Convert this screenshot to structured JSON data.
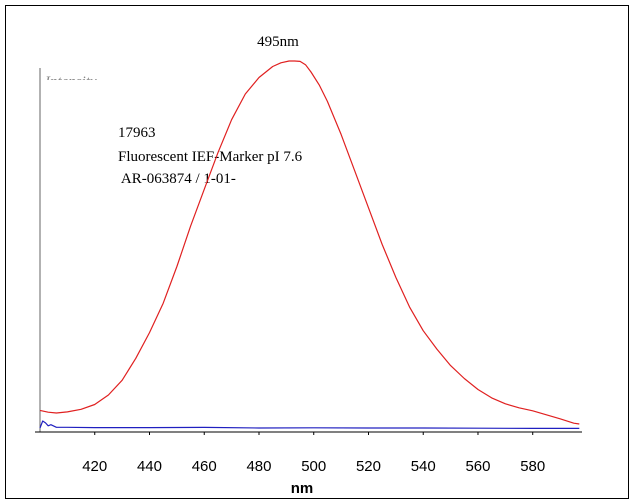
{
  "chart_data": {
    "type": "line",
    "peak_label": "495nm",
    "y_axis_label": "Intensity",
    "annotations": [
      "17963",
      "Fluorescent IEF-Marker pI 7.6",
      " AR-063874 / 1-01-"
    ],
    "xlabel": "nm",
    "x_ticks": [
      420,
      440,
      460,
      480,
      500,
      520,
      540,
      560,
      580
    ],
    "xlim": [
      400,
      598
    ],
    "ylim": [
      0,
      1
    ],
    "grid": false,
    "series": [
      {
        "color": "#e02020",
        "x": [
          400,
          403,
          406,
          410,
          415,
          420,
          425,
          430,
          435,
          440,
          445,
          450,
          455,
          460,
          465,
          470,
          475,
          480,
          485,
          488,
          491,
          493,
          495,
          497,
          499,
          502,
          505,
          510,
          515,
          520,
          525,
          530,
          535,
          540,
          545,
          550,
          555,
          560,
          565,
          570,
          575,
          580,
          585,
          590,
          595,
          597
        ],
        "y": [
          0.048,
          0.043,
          0.041,
          0.044,
          0.051,
          0.064,
          0.09,
          0.13,
          0.19,
          0.26,
          0.34,
          0.44,
          0.55,
          0.65,
          0.75,
          0.84,
          0.91,
          0.955,
          0.985,
          0.995,
          1.0,
          1.0,
          0.999,
          0.99,
          0.97,
          0.935,
          0.89,
          0.8,
          0.7,
          0.6,
          0.5,
          0.41,
          0.33,
          0.265,
          0.215,
          0.17,
          0.135,
          0.105,
          0.082,
          0.066,
          0.055,
          0.047,
          0.036,
          0.025,
          0.013,
          0.011
        ]
      },
      {
        "color": "#2020c0",
        "x": [
          400,
          401,
          402,
          403,
          404,
          406,
          410,
          420,
          440,
          460,
          480,
          500,
          520,
          540,
          560,
          580,
          597
        ],
        "y": [
          0.0,
          0.019,
          0.014,
          0.006,
          0.009,
          0.002,
          0.002,
          0.001,
          0.001,
          0.0015,
          0.0,
          0.0005,
          0.0,
          0.0,
          -0.0005,
          -0.001,
          -0.001
        ]
      }
    ]
  }
}
